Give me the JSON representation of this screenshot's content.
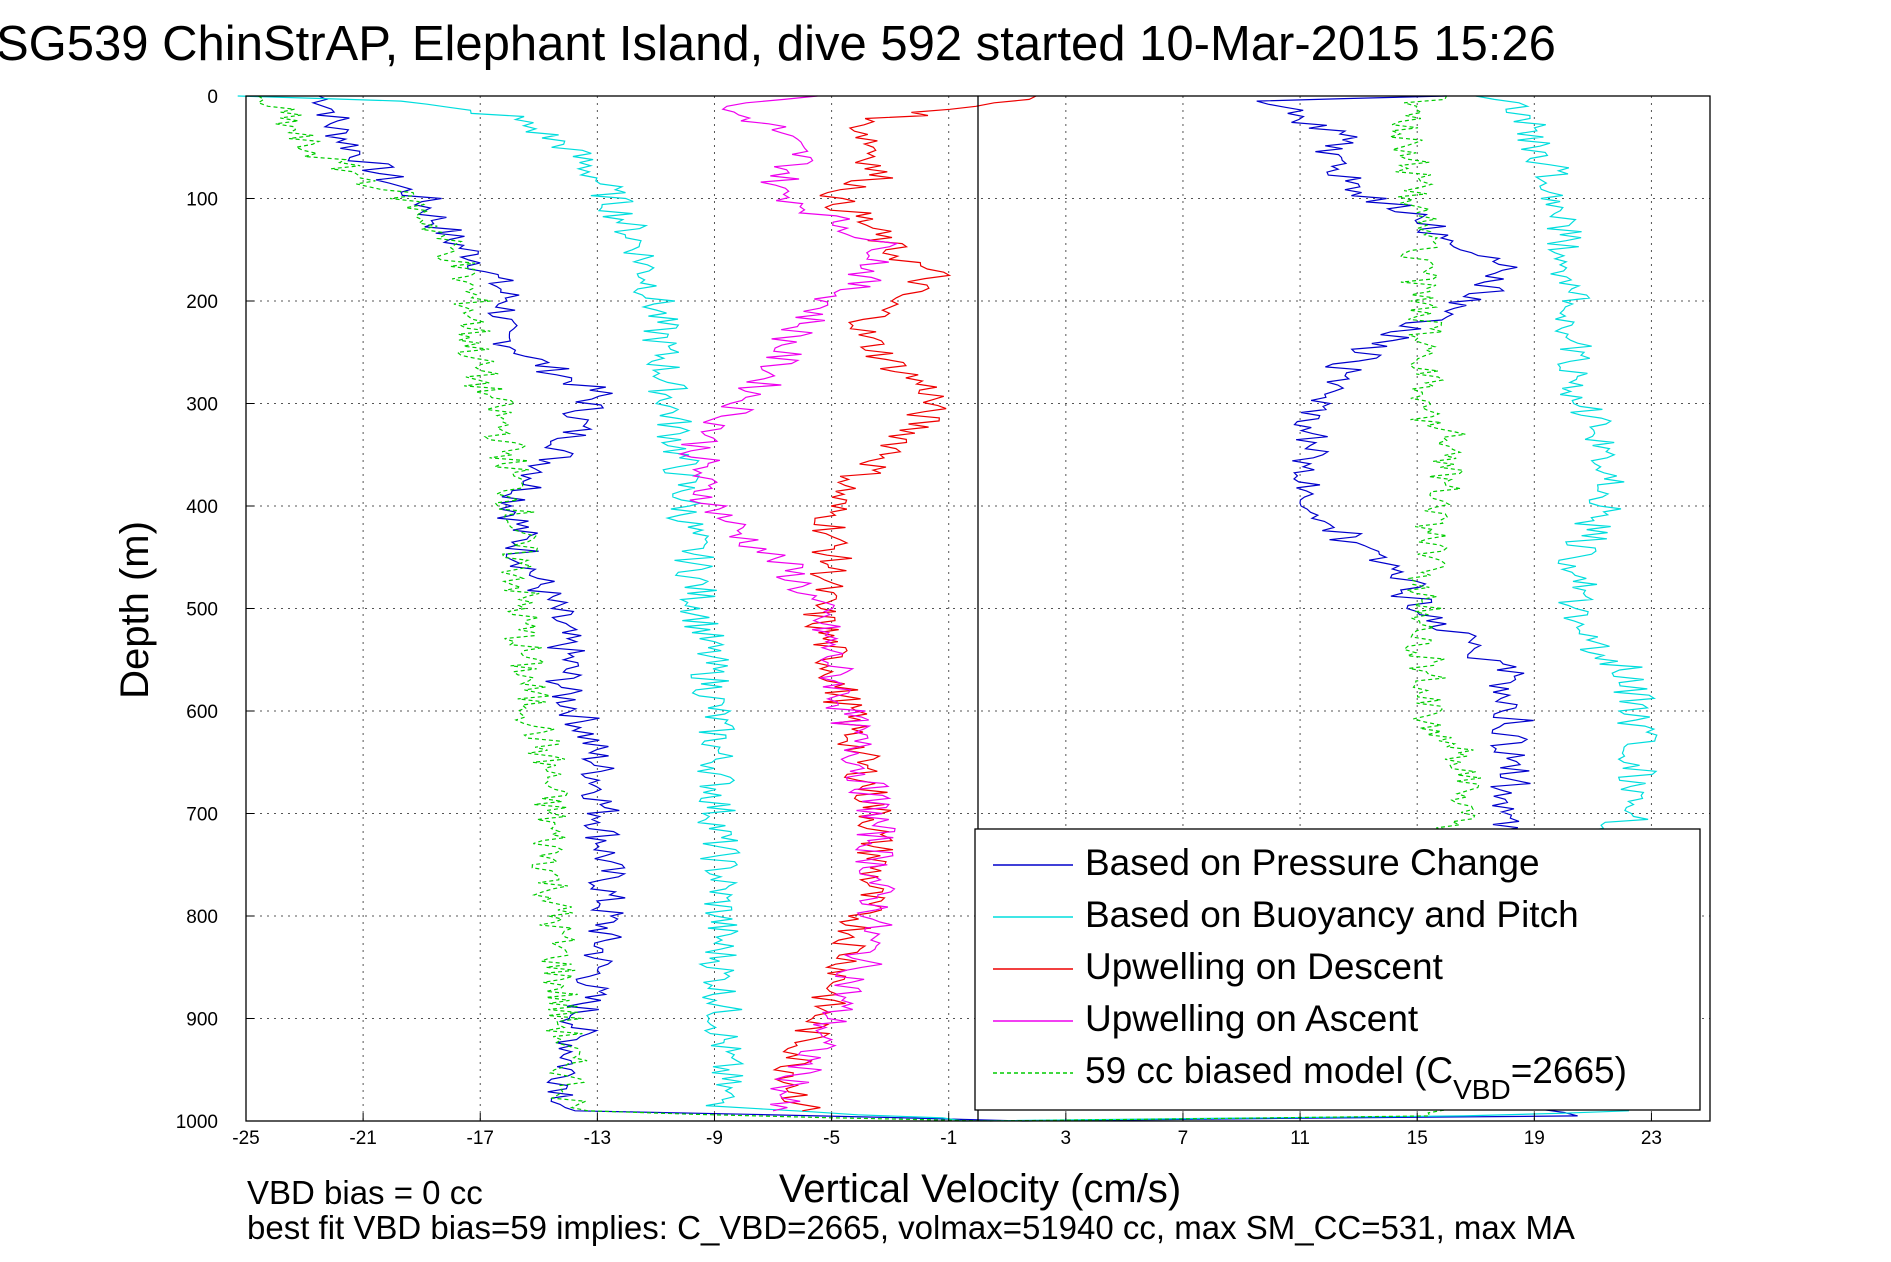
{
  "chart_data": {
    "type": "line",
    "title": "SG539 ChinStrAP, Elephant Island, dive 592 started 10-Mar-2015 15:26",
    "xlabel": "Vertical Velocity (cm/s)",
    "ylabel": "Depth (m)",
    "xlim": [
      -25,
      25
    ],
    "ylim": [
      1000,
      0
    ],
    "y_reversed": true,
    "x_ticks": [
      -25,
      -21,
      -17,
      -13,
      -9,
      -5,
      -1,
      3,
      7,
      11,
      15,
      19,
      23
    ],
    "y_ticks": [
      0,
      100,
      200,
      300,
      400,
      500,
      600,
      700,
      800,
      900,
      1000
    ],
    "grid": true,
    "legend_position": "bottom-right",
    "zero_line_x": 0,
    "annotations": [
      "VBD bias = 0 cc",
      "best fit VBD bias=59 implies: C_VBD=2665, volmax=51940 cc, max SM_CC=531, max MA"
    ],
    "series": [
      {
        "name": "Based on Pressure Change",
        "color": "#0000cc",
        "style": "solid",
        "points": [
          [
            -22.5,
            0
          ],
          [
            -22,
            10
          ],
          [
            -22,
            30
          ],
          [
            -21,
            60
          ],
          [
            -20,
            85
          ],
          [
            -19,
            100
          ],
          [
            -18,
            140
          ],
          [
            -17,
            160
          ],
          [
            -16.5,
            180
          ],
          [
            -16,
            200
          ],
          [
            -16.5,
            230
          ],
          [
            -15,
            260
          ],
          [
            -13,
            290
          ],
          [
            -13.5,
            310
          ],
          [
            -14,
            340
          ],
          [
            -15,
            370
          ],
          [
            -15.8,
            400
          ],
          [
            -15.5,
            450
          ],
          [
            -14.5,
            500
          ],
          [
            -14,
            550
          ],
          [
            -14.2,
            580
          ],
          [
            -13.5,
            610
          ],
          [
            -13,
            650
          ],
          [
            -12.8,
            700
          ],
          [
            -12.7,
            750
          ],
          [
            -12.7,
            800
          ],
          [
            -13,
            850
          ],
          [
            -13.6,
            900
          ],
          [
            -14,
            950
          ],
          [
            -14,
            990
          ],
          [
            2,
            1000
          ],
          [
            20,
            995
          ],
          [
            18,
            985
          ],
          [
            18,
            900
          ],
          [
            18,
            800
          ],
          [
            18,
            720
          ],
          [
            18.2,
            680
          ],
          [
            18.2,
            640
          ],
          [
            18.3,
            600
          ],
          [
            18,
            560
          ],
          [
            16.5,
            530
          ],
          [
            15,
            500
          ],
          [
            14.5,
            470
          ],
          [
            13.5,
            450
          ],
          [
            12.5,
            430
          ],
          [
            11.5,
            400
          ],
          [
            11.3,
            350
          ],
          [
            11.5,
            300
          ],
          [
            12.3,
            270
          ],
          [
            13.2,
            250
          ],
          [
            14.5,
            230
          ],
          [
            16,
            210
          ],
          [
            17.5,
            190
          ],
          [
            18,
            170
          ],
          [
            17,
            150
          ],
          [
            15.5,
            130
          ],
          [
            14.5,
            110
          ],
          [
            13.5,
            100
          ],
          [
            12.5,
            80
          ],
          [
            12,
            60
          ],
          [
            12.3,
            40
          ],
          [
            11,
            20
          ],
          [
            10,
            5
          ],
          [
            16,
            0
          ]
        ]
      },
      {
        "name": "Based on Buoyancy and Pitch",
        "color": "#00dddd",
        "style": "solid",
        "points": [
          [
            -25,
            0
          ],
          [
            -20,
            5
          ],
          [
            -16,
            20
          ],
          [
            -14,
            50
          ],
          [
            -13,
            80
          ],
          [
            -12.5,
            100
          ],
          [
            -11.5,
            150
          ],
          [
            -11,
            200
          ],
          [
            -10.8,
            250
          ],
          [
            -10.5,
            300
          ],
          [
            -10.2,
            350
          ],
          [
            -10,
            400
          ],
          [
            -9.7,
            450
          ],
          [
            -9.5,
            500
          ],
          [
            -9.2,
            550
          ],
          [
            -9,
            600
          ],
          [
            -8.9,
            650
          ],
          [
            -8.9,
            700
          ],
          [
            -8.8,
            750
          ],
          [
            -8.8,
            800
          ],
          [
            -8.8,
            850
          ],
          [
            -8.7,
            900
          ],
          [
            -8.7,
            950
          ],
          [
            -8.7,
            985
          ],
          [
            0,
            1000
          ],
          [
            17,
            995
          ],
          [
            22,
            990
          ],
          [
            22,
            900
          ],
          [
            21.5,
            800
          ],
          [
            21.5,
            720
          ],
          [
            22.5,
            700
          ],
          [
            22.5,
            650
          ],
          [
            22.5,
            600
          ],
          [
            22.3,
            560
          ],
          [
            21,
            540
          ],
          [
            20.5,
            500
          ],
          [
            20.5,
            450
          ],
          [
            21,
            420
          ],
          [
            21.5,
            400
          ],
          [
            21.5,
            350
          ],
          [
            21,
            320
          ],
          [
            20.5,
            300
          ],
          [
            20.3,
            250
          ],
          [
            20.2,
            200
          ],
          [
            20,
            150
          ],
          [
            19.8,
            100
          ],
          [
            19.5,
            70
          ],
          [
            19,
            40
          ],
          [
            18.5,
            10
          ],
          [
            17,
            0
          ]
        ]
      },
      {
        "name": "Upwelling on Descent",
        "color": "#ee0000",
        "style": "solid",
        "points": [
          [
            2,
            0
          ],
          [
            0,
            10
          ],
          [
            -4,
            25
          ],
          [
            -3.5,
            50
          ],
          [
            -3.5,
            80
          ],
          [
            -5,
            100
          ],
          [
            -4,
            120
          ],
          [
            -3,
            150
          ],
          [
            -1.5,
            175
          ],
          [
            -3,
            200
          ],
          [
            -4,
            230
          ],
          [
            -3,
            260
          ],
          [
            -1.5,
            290
          ],
          [
            -2,
            320
          ],
          [
            -3,
            350
          ],
          [
            -4.5,
            380
          ],
          [
            -5,
            400
          ],
          [
            -5,
            430
          ],
          [
            -5,
            460
          ],
          [
            -5.5,
            500
          ],
          [
            -5,
            550
          ],
          [
            -4.5,
            600
          ],
          [
            -4,
            650
          ],
          [
            -3.5,
            700
          ],
          [
            -3.5,
            750
          ],
          [
            -4,
            800
          ],
          [
            -4.5,
            850
          ],
          [
            -5.5,
            900
          ],
          [
            -6.3,
            950
          ],
          [
            -6,
            990
          ]
        ]
      },
      {
        "name": "Upwelling on Ascent",
        "color": "#ee00ee",
        "style": "solid",
        "points": [
          [
            -5,
            0
          ],
          [
            -9,
            10
          ],
          [
            -7,
            30
          ],
          [
            -6,
            60
          ],
          [
            -7,
            90
          ],
          [
            -5,
            120
          ],
          [
            -3,
            150
          ],
          [
            -4,
            180
          ],
          [
            -5.5,
            210
          ],
          [
            -6.5,
            240
          ],
          [
            -7,
            270
          ],
          [
            -8,
            300
          ],
          [
            -9.5,
            340
          ],
          [
            -9.5,
            380
          ],
          [
            -9,
            400
          ],
          [
            -8,
            430
          ],
          [
            -6.5,
            460
          ],
          [
            -5.5,
            500
          ],
          [
            -5,
            550
          ],
          [
            -4.5,
            600
          ],
          [
            -4,
            650
          ],
          [
            -3.5,
            700
          ],
          [
            -3.5,
            750
          ],
          [
            -3.5,
            800
          ],
          [
            -4,
            850
          ],
          [
            -5,
            900
          ],
          [
            -6,
            950
          ],
          [
            -7,
            990
          ]
        ]
      },
      {
        "name": "59 cc biased model (C_VBD=2665)",
        "color": "#00cc00",
        "style": "dashed",
        "points": [
          [
            -25,
            0
          ],
          [
            -24,
            10
          ],
          [
            -23.5,
            30
          ],
          [
            -23,
            50
          ],
          [
            -21,
            80
          ],
          [
            -19.5,
            100
          ],
          [
            -18.5,
            130
          ],
          [
            -17.8,
            160
          ],
          [
            -17.3,
            200
          ],
          [
            -17.2,
            250
          ],
          [
            -17,
            280
          ],
          [
            -16.5,
            300
          ],
          [
            -16,
            350
          ],
          [
            -15.8,
            400
          ],
          [
            -15.7,
            450
          ],
          [
            -15.6,
            500
          ],
          [
            -15.5,
            550
          ],
          [
            -15.2,
            600
          ],
          [
            -14.7,
            650
          ],
          [
            -14.6,
            700
          ],
          [
            -14.6,
            750
          ],
          [
            -14.4,
            800
          ],
          [
            -14.3,
            850
          ],
          [
            -14.2,
            900
          ],
          [
            -14,
            950
          ],
          [
            -13.8,
            990
          ],
          [
            0,
            1000
          ],
          [
            16,
            995
          ],
          [
            16,
            980
          ],
          [
            16.3,
            900
          ],
          [
            16.2,
            800
          ],
          [
            16.3,
            720
          ],
          [
            16.5,
            690
          ],
          [
            16.7,
            650
          ],
          [
            15.5,
            620
          ],
          [
            15.5,
            580
          ],
          [
            15.2,
            540
          ],
          [
            15.2,
            500
          ],
          [
            15.5,
            450
          ],
          [
            15.5,
            420
          ],
          [
            16,
            380
          ],
          [
            16,
            330
          ],
          [
            15.2,
            310
          ],
          [
            15.2,
            280
          ],
          [
            15.3,
            230
          ],
          [
            15.1,
            200
          ],
          [
            15,
            160
          ],
          [
            15,
            120
          ],
          [
            15,
            80
          ],
          [
            14.7,
            40
          ],
          [
            14.7,
            10
          ],
          [
            16,
            0
          ]
        ]
      }
    ]
  }
}
